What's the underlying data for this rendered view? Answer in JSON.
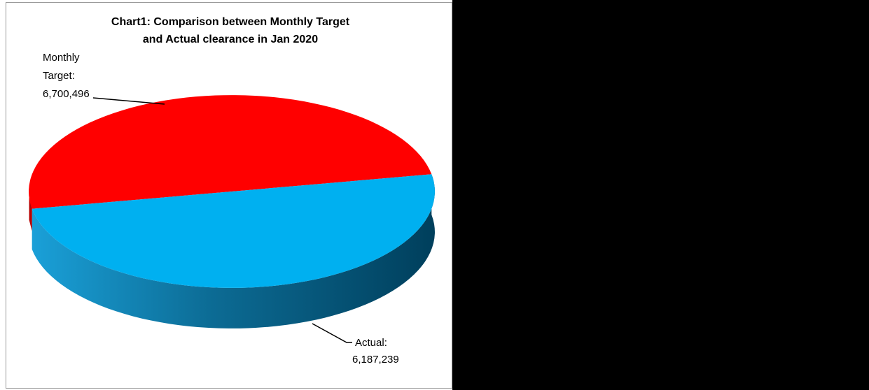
{
  "chart_data": {
    "type": "pie",
    "title_lines": [
      "Chart1: Comparison between Monthly Target",
      "and  Actual clearance in Jan 2020"
    ],
    "categories": [
      "Monthly Target",
      "Actual"
    ],
    "values": [
      6700496,
      6187239
    ],
    "labels": {
      "target": [
        "Monthly",
        "Target:",
        "6,700,496"
      ],
      "actual": [
        "Actual:",
        "6,187,239"
      ]
    },
    "colors": {
      "target": "#ff0000",
      "actual": "#00b0f0",
      "actual_side_light": "#1aa0d8",
      "actual_side_dark": "#003f5c"
    },
    "style": "3d-pie",
    "legend": "none"
  }
}
